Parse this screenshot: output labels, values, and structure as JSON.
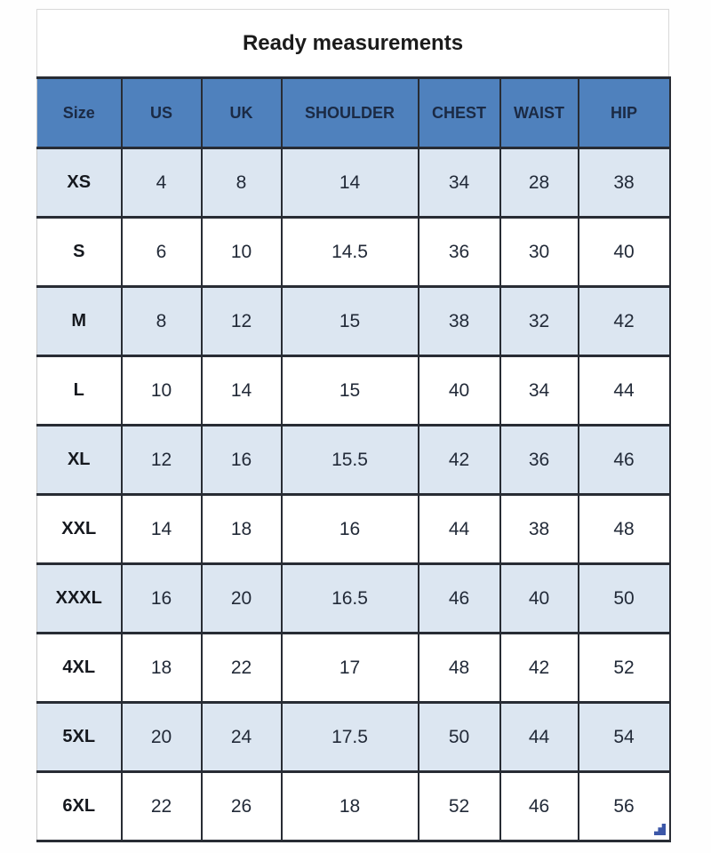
{
  "title": "Ready measurements",
  "chart_data": {
    "type": "table",
    "title": "Ready measurements",
    "columns": [
      "Size",
      "US",
      "UK",
      "SHOULDER",
      "CHEST",
      "WAIST",
      "HIP"
    ],
    "rows": [
      [
        "XS",
        "4",
        "8",
        "14",
        "34",
        "28",
        "38"
      ],
      [
        "S",
        "6",
        "10",
        "14.5",
        "36",
        "30",
        "40"
      ],
      [
        "M",
        "8",
        "12",
        "15",
        "38",
        "32",
        "42"
      ],
      [
        "L",
        "10",
        "14",
        "15",
        "40",
        "34",
        "44"
      ],
      [
        "XL",
        "12",
        "16",
        "15.5",
        "42",
        "36",
        "46"
      ],
      [
        "XXL",
        "14",
        "18",
        "16",
        "44",
        "38",
        "48"
      ],
      [
        "XXXL",
        "16",
        "20",
        "16.5",
        "46",
        "40",
        "50"
      ],
      [
        "4XL",
        "18",
        "22",
        "17",
        "48",
        "42",
        "52"
      ],
      [
        "5XL",
        "20",
        "24",
        "17.5",
        "50",
        "44",
        "54"
      ],
      [
        "6XL",
        "22",
        "26",
        "18",
        "52",
        "46",
        "56"
      ]
    ],
    "layout_hints": {
      "striped_rows": "odd data rows shaded light blue",
      "header_position": "top"
    }
  },
  "colors": {
    "header_bg": "#4f81bd",
    "stripe_bg": "#dce6f1",
    "row_bg": "#ffffff",
    "border_dark": "#282c34",
    "title_border": "#d9d9d9",
    "header_text": "#1b2a44",
    "body_text": "#222a38",
    "resize_handle": "#3c57a8"
  },
  "icons": {
    "table_resize_handle": "stepped-triangle"
  }
}
